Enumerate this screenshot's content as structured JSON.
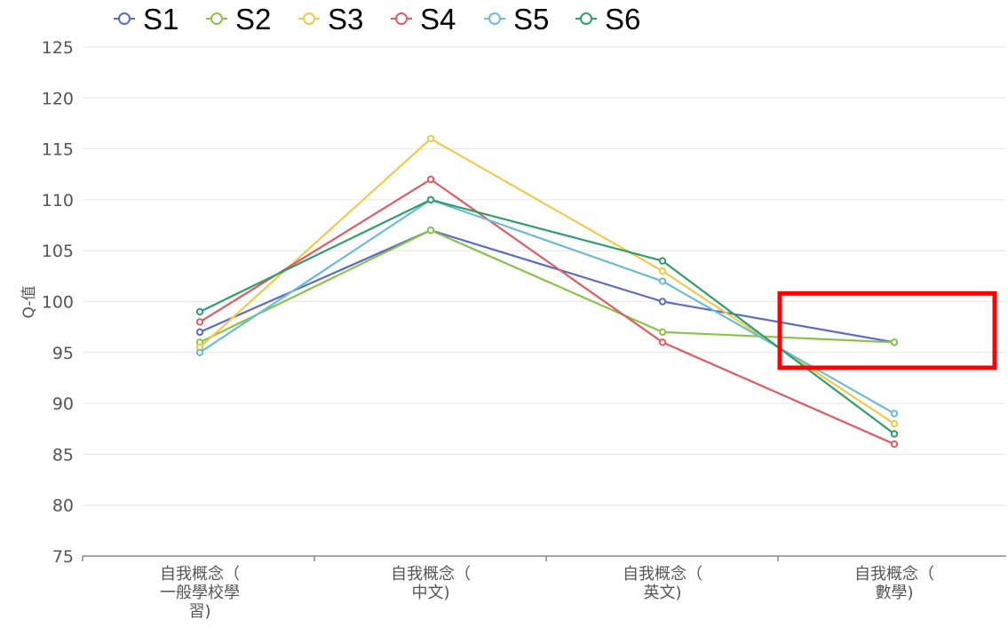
{
  "chart_data": {
    "type": "line",
    "ylabel": "Q-值",
    "ylim": [
      75,
      125
    ],
    "yticks": [
      75,
      80,
      85,
      90,
      95,
      100,
      105,
      110,
      115,
      120,
      125
    ],
    "categories": [
      [
        "自我概念（",
        "一般學校學",
        "習)"
      ],
      [
        "自我概念（",
        "中文)"
      ],
      [
        "自我概念（",
        "英文)"
      ],
      [
        "自我概念（",
        "數學)"
      ]
    ],
    "series": [
      {
        "name": "S1",
        "color": "#5c6bc0",
        "values": [
          97,
          107,
          100,
          96
        ]
      },
      {
        "name": "S2",
        "color": "#8bc34a",
        "values": [
          96,
          107,
          97,
          96
        ]
      },
      {
        "name": "S3",
        "color": "#f2c94c",
        "values": [
          95.5,
          116,
          103,
          88
        ]
      },
      {
        "name": "S4",
        "color": "#e05c64",
        "values": [
          98,
          112,
          96,
          86
        ]
      },
      {
        "name": "S5",
        "color": "#6cbcd6",
        "values": [
          95,
          110,
          102,
          89
        ]
      },
      {
        "name": "S6",
        "color": "#2e9e6b",
        "values": [
          99,
          110,
          104,
          87
        ]
      }
    ],
    "legend": "top",
    "grid": true,
    "annotation": {
      "type": "highlight-box",
      "color": "#ff0000",
      "category_index": 3,
      "y_range": [
        93.5,
        100.8
      ]
    }
  }
}
